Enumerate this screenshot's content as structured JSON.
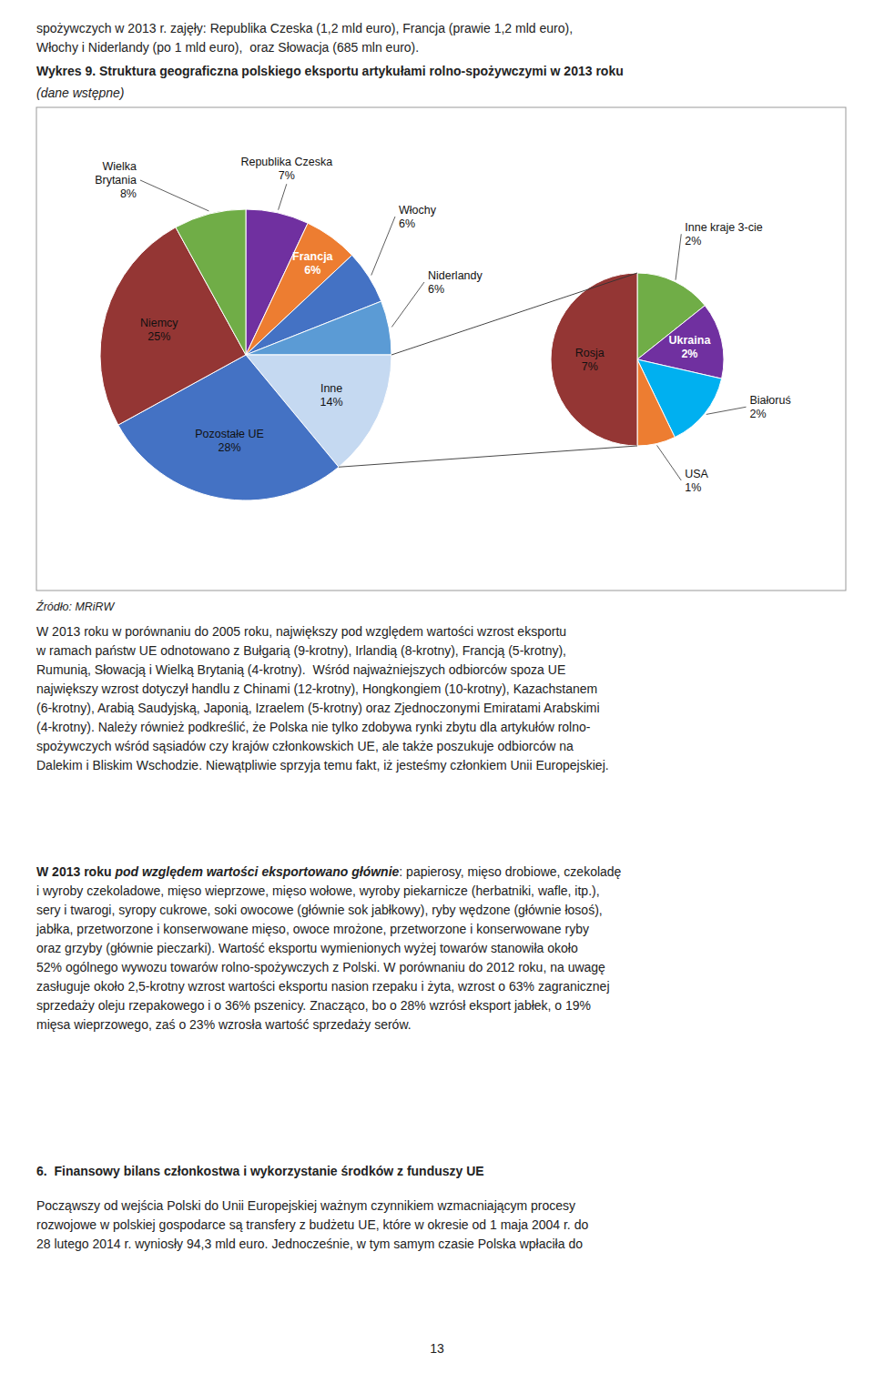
{
  "header_text": [
    "spożywczych w 2013 r. zajęły: Republika Czeska (1,2 mld euro), Francja (prawie 1,2 mld euro),",
    "Włochy i Niderlandy (po 1 mld euro),  oraz Słowacja (685 mln euro)."
  ],
  "chart_data": [
    {
      "type": "pie",
      "title": "Wykres 9. Struktura geograficzna polskiego eksportu artykułami rolno-spożywczymi w 2013 roku",
      "subtitle": "(dane wstępne)",
      "categories": [
        "Republika Czeska",
        "Francja",
        "Włochy",
        "Niderlandy",
        "Inne",
        "Pozostałe UE",
        "Niemcy",
        "Wielka\nBrytania"
      ],
      "values": [
        7,
        6,
        6,
        6,
        14,
        28,
        25,
        8
      ],
      "value_labels": [
        "7%",
        "6%",
        "6%",
        "6%",
        "14%",
        "28%",
        "25%",
        "8%"
      ],
      "colors": [
        "#7030A0",
        "#ED7D31",
        "#4472C4",
        "#5B9BD5",
        "#C5D9F1",
        "#4472C4",
        "#943634",
        "#70AD47"
      ],
      "data_labels": true
    },
    {
      "type": "pie",
      "categories": [
        "Inne kraje 3-cie",
        "Ukraina",
        "Białoruś",
        "USA",
        "Rosja"
      ],
      "values": [
        2,
        2,
        2,
        1,
        7
      ],
      "value_labels": [
        "2%",
        "2%",
        "2%",
        "1%",
        "7%"
      ],
      "colors": [
        "#70AD47",
        "#7030A0",
        "#00B0F0",
        "#ED7D31",
        "#943634"
      ],
      "data_labels": true
    }
  ],
  "source": "Źródło: MRiRW",
  "body1": "W 2013 roku w porównaniu do 2005 roku, największy pod względem wartości wzrost eksportu\nw ramach państw UE odnotowano z Bułgarią (9-krotny), Irlandią (8-krotny), Francją (5-krotny),\nRumunią, Słowacją i Wielką Brytanią (4-krotny).  Wśród najważniejszych odbiorców spoza UE\nnajwiększy wzrost dotyczył handlu z Chinami (12-krotny), Hongkongiem (10-krotny), Kazachstanem\n(6-krotny), Arabią Saudyjską, Japonią, Izraelem (5-krotny) oraz Zjednoczonymi Emiratami Arabskimi\n(4-krotny). Należy również podkreślić, że Polska nie tylko zdobywa rynki zbytu dla artykułów rolno-\nspożywczych wśród sąsiadów czy krajów członkowskich UE, ale także poszukuje odbiorców na\nDalekim i Bliskim Wschodzie. Niewątpliwie sprzyja temu fakt, iż jesteśmy członkiem Unii Europejskiej.",
  "body2_bold1": "W 2013 roku ",
  "body2_bold2": "pod względem wartości eksportowano głównie",
  "body2_rest": ": papierosy, mięso drobiowe, czekoladę\ni wyroby czekoladowe, mięso wieprzowe, mięso wołowe, wyroby piekarnicze (herbatniki, wafle, itp.),\nsery i twarogi, syropy cukrowe, soki owocowe (głównie sok jabłkowy), ryby wędzone (głównie łosoś),\njabłka, przetworzone i konserwowane mięso, owoce mrożone, przetworzone i konserwowane ryby\noraz grzyby (głównie pieczarki). Wartość eksportu wymienionych wyżej towarów stanowiła około\n52% ogólnego wywozu towarów rolno-spożywczych z Polski. W porównaniu do 2012 roku, na uwagę\nzasługuje około 2,5-krotny wzrost wartości eksportu nasion rzepaku i żyta, wzrost o 63% zagranicznej\nsprzedaży oleju rzepakowego i o 36% pszenicy. Znacząco, bo o 28% wzrósł eksport jabłek, o 19%\nmięsa wieprzowego, zaś o 23% wzrosła wartość sprzedaży serów.",
  "sec6_title": "6.  Finansowy bilans członkostwa i wykorzystanie środków z funduszy UE",
  "sec6_text": "Począwszy od wejścia Polski do Unii Europejskiej ważnym czynnikiem wzmacniającym procesy\nrozwojowe w polskiej gospodarce są transfery z budżetu UE, które w okresie od 1 maja 2004 r. do\n28 lutego 2014 r. wyniosły 94,3 mld euro. Jednocześnie, w tym samym czasie Polska wpłaciła do",
  "page_number": "13"
}
